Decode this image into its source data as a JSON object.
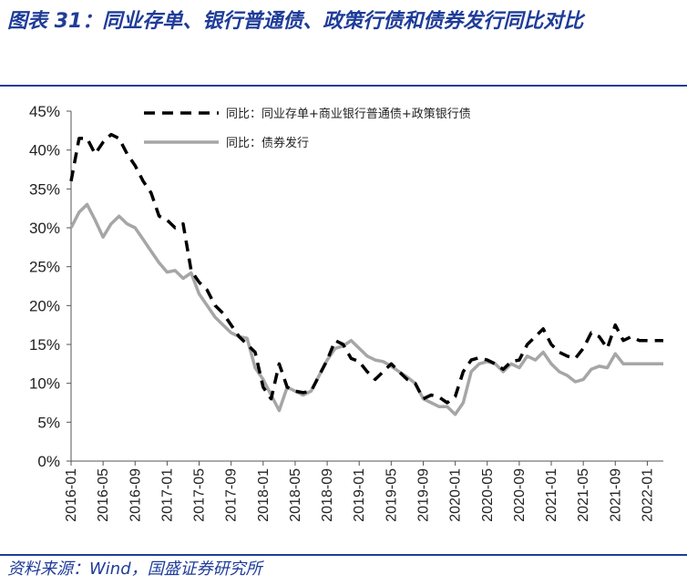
{
  "header": {
    "title": "图表 31：同业存单、银行普通债、政策行债和债券发行同比对比"
  },
  "footer": {
    "source": "资料来源：Wind，国盛证券研究所"
  },
  "chart_data": {
    "type": "line",
    "title": "图表 31：同业存单、银行普通债、政策行债和债券发行同比对比",
    "xlabel": "",
    "ylabel": "",
    "ylim": [
      0,
      45
    ],
    "yticks": [
      "0%",
      "5%",
      "10%",
      "15%",
      "20%",
      "25%",
      "30%",
      "35%",
      "40%",
      "45%"
    ],
    "xticks": [
      "2016-01",
      "2016-05",
      "2016-09",
      "2017-01",
      "2017-05",
      "2017-09",
      "2018-01",
      "2018-05",
      "2018-09",
      "2019-01",
      "2019-05",
      "2019-09",
      "2020-01",
      "2020-05",
      "2020-09",
      "2021-01",
      "2021-05",
      "2021-09",
      "2022-01"
    ],
    "x": [
      "2016-01",
      "2016-02",
      "2016-03",
      "2016-04",
      "2016-05",
      "2016-06",
      "2016-07",
      "2016-08",
      "2016-09",
      "2016-10",
      "2016-11",
      "2016-12",
      "2017-01",
      "2017-02",
      "2017-03",
      "2017-04",
      "2017-05",
      "2017-06",
      "2017-07",
      "2017-08",
      "2017-09",
      "2017-10",
      "2017-11",
      "2017-12",
      "2018-01",
      "2018-02",
      "2018-03",
      "2018-04",
      "2018-05",
      "2018-06",
      "2018-07",
      "2018-08",
      "2018-09",
      "2018-10",
      "2018-11",
      "2018-12",
      "2019-01",
      "2019-02",
      "2019-03",
      "2019-04",
      "2019-05",
      "2019-06",
      "2019-07",
      "2019-08",
      "2019-09",
      "2019-10",
      "2019-11",
      "2019-12",
      "2020-01",
      "2020-02",
      "2020-03",
      "2020-04",
      "2020-05",
      "2020-06",
      "2020-07",
      "2020-08",
      "2020-09",
      "2020-10",
      "2020-11",
      "2020-12",
      "2021-01",
      "2021-02",
      "2021-03",
      "2021-04",
      "2021-05",
      "2021-06",
      "2021-07",
      "2021-08",
      "2021-09",
      "2021-10",
      "2021-11",
      "2021-12",
      "2022-01",
      "2022-02",
      "2022-03"
    ],
    "legend_position": "top-right",
    "grid": false,
    "series": [
      {
        "name": "同比：同业存单+商业银行普通债+政策银行债",
        "style": "dashed",
        "color": "#000000",
        "values": [
          36,
          41.5,
          41.5,
          39.5,
          41,
          42,
          41.5,
          39.5,
          38,
          36,
          34.5,
          31.5,
          31,
          30,
          30.5,
          24.5,
          23,
          22,
          20,
          19,
          17.5,
          16,
          15,
          14,
          9.5,
          8,
          12.5,
          9.5,
          9,
          8.8,
          9,
          11,
          13,
          15.5,
          15,
          13.2,
          12.8,
          11.5,
          10.5,
          11.5,
          12.5,
          11.5,
          10.5,
          10,
          8,
          8.5,
          8.2,
          7.5,
          8.3,
          11.5,
          13,
          13.3,
          13,
          12.5,
          11.8,
          12.8,
          13,
          15,
          16,
          17,
          15,
          14,
          13.5,
          13.2,
          14.5,
          16.5,
          16,
          14.5,
          17.5,
          15.5,
          16,
          15.5,
          15.5,
          15.5,
          15.5
        ]
      },
      {
        "name": "同比：债券发行",
        "style": "solid",
        "color": "#a6a6a6",
        "values": [
          30,
          32,
          33,
          31,
          28.8,
          30.5,
          31.5,
          30.5,
          30,
          28.5,
          27,
          25.5,
          24.3,
          24.5,
          23.5,
          24.2,
          21.5,
          20,
          18.5,
          17.5,
          16.5,
          16,
          15.8,
          12,
          10.5,
          8.5,
          6.5,
          9.5,
          9,
          8.5,
          9,
          11,
          13,
          14.5,
          14.8,
          15.5,
          14.5,
          13.5,
          13,
          12.8,
          12.2,
          11.5,
          10.8,
          10,
          8,
          7.5,
          7,
          7,
          6,
          7.5,
          11.5,
          12.5,
          12.8,
          12.5,
          11.5,
          12.5,
          12,
          13.5,
          13,
          14,
          12.5,
          11.5,
          11,
          10.2,
          10.5,
          11.8,
          12.2,
          12,
          13.8,
          12.5,
          12.5,
          12.5,
          12.5,
          12.5,
          12.5
        ]
      }
    ]
  }
}
